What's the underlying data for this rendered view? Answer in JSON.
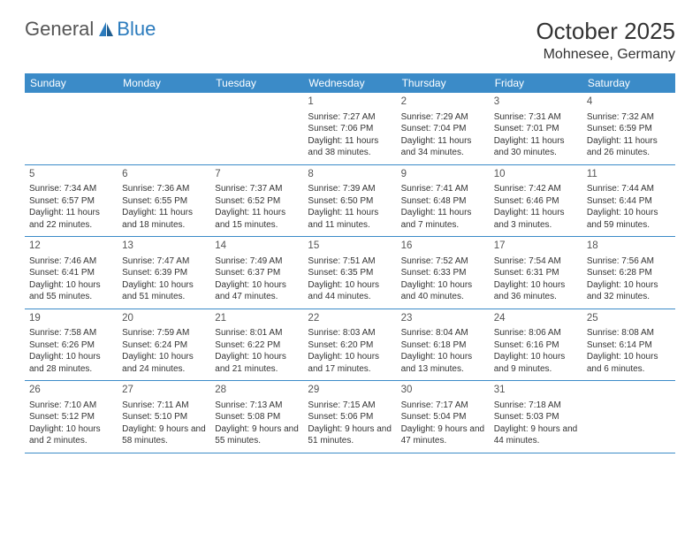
{
  "brand": {
    "part1": "General",
    "part2": "Blue"
  },
  "title": "October 2025",
  "location": "Mohnesee, Germany",
  "colors": {
    "header_bg": "#3b8bc8",
    "header_text": "#ffffff",
    "row_border": "#3b8bc8",
    "brand_gray": "#555555",
    "brand_blue": "#2b7bbd",
    "body_text": "#333333",
    "background": "#ffffff"
  },
  "day_labels": [
    "Sunday",
    "Monday",
    "Tuesday",
    "Wednesday",
    "Thursday",
    "Friday",
    "Saturday"
  ],
  "weeks": [
    [
      null,
      null,
      null,
      {
        "n": "1",
        "sr": "Sunrise: 7:27 AM",
        "ss": "Sunset: 7:06 PM",
        "dl": "Daylight: 11 hours and 38 minutes."
      },
      {
        "n": "2",
        "sr": "Sunrise: 7:29 AM",
        "ss": "Sunset: 7:04 PM",
        "dl": "Daylight: 11 hours and 34 minutes."
      },
      {
        "n": "3",
        "sr": "Sunrise: 7:31 AM",
        "ss": "Sunset: 7:01 PM",
        "dl": "Daylight: 11 hours and 30 minutes."
      },
      {
        "n": "4",
        "sr": "Sunrise: 7:32 AM",
        "ss": "Sunset: 6:59 PM",
        "dl": "Daylight: 11 hours and 26 minutes."
      }
    ],
    [
      {
        "n": "5",
        "sr": "Sunrise: 7:34 AM",
        "ss": "Sunset: 6:57 PM",
        "dl": "Daylight: 11 hours and 22 minutes."
      },
      {
        "n": "6",
        "sr": "Sunrise: 7:36 AM",
        "ss": "Sunset: 6:55 PM",
        "dl": "Daylight: 11 hours and 18 minutes."
      },
      {
        "n": "7",
        "sr": "Sunrise: 7:37 AM",
        "ss": "Sunset: 6:52 PM",
        "dl": "Daylight: 11 hours and 15 minutes."
      },
      {
        "n": "8",
        "sr": "Sunrise: 7:39 AM",
        "ss": "Sunset: 6:50 PM",
        "dl": "Daylight: 11 hours and 11 minutes."
      },
      {
        "n": "9",
        "sr": "Sunrise: 7:41 AM",
        "ss": "Sunset: 6:48 PM",
        "dl": "Daylight: 11 hours and 7 minutes."
      },
      {
        "n": "10",
        "sr": "Sunrise: 7:42 AM",
        "ss": "Sunset: 6:46 PM",
        "dl": "Daylight: 11 hours and 3 minutes."
      },
      {
        "n": "11",
        "sr": "Sunrise: 7:44 AM",
        "ss": "Sunset: 6:44 PM",
        "dl": "Daylight: 10 hours and 59 minutes."
      }
    ],
    [
      {
        "n": "12",
        "sr": "Sunrise: 7:46 AM",
        "ss": "Sunset: 6:41 PM",
        "dl": "Daylight: 10 hours and 55 minutes."
      },
      {
        "n": "13",
        "sr": "Sunrise: 7:47 AM",
        "ss": "Sunset: 6:39 PM",
        "dl": "Daylight: 10 hours and 51 minutes."
      },
      {
        "n": "14",
        "sr": "Sunrise: 7:49 AM",
        "ss": "Sunset: 6:37 PM",
        "dl": "Daylight: 10 hours and 47 minutes."
      },
      {
        "n": "15",
        "sr": "Sunrise: 7:51 AM",
        "ss": "Sunset: 6:35 PM",
        "dl": "Daylight: 10 hours and 44 minutes."
      },
      {
        "n": "16",
        "sr": "Sunrise: 7:52 AM",
        "ss": "Sunset: 6:33 PM",
        "dl": "Daylight: 10 hours and 40 minutes."
      },
      {
        "n": "17",
        "sr": "Sunrise: 7:54 AM",
        "ss": "Sunset: 6:31 PM",
        "dl": "Daylight: 10 hours and 36 minutes."
      },
      {
        "n": "18",
        "sr": "Sunrise: 7:56 AM",
        "ss": "Sunset: 6:28 PM",
        "dl": "Daylight: 10 hours and 32 minutes."
      }
    ],
    [
      {
        "n": "19",
        "sr": "Sunrise: 7:58 AM",
        "ss": "Sunset: 6:26 PM",
        "dl": "Daylight: 10 hours and 28 minutes."
      },
      {
        "n": "20",
        "sr": "Sunrise: 7:59 AM",
        "ss": "Sunset: 6:24 PM",
        "dl": "Daylight: 10 hours and 24 minutes."
      },
      {
        "n": "21",
        "sr": "Sunrise: 8:01 AM",
        "ss": "Sunset: 6:22 PM",
        "dl": "Daylight: 10 hours and 21 minutes."
      },
      {
        "n": "22",
        "sr": "Sunrise: 8:03 AM",
        "ss": "Sunset: 6:20 PM",
        "dl": "Daylight: 10 hours and 17 minutes."
      },
      {
        "n": "23",
        "sr": "Sunrise: 8:04 AM",
        "ss": "Sunset: 6:18 PM",
        "dl": "Daylight: 10 hours and 13 minutes."
      },
      {
        "n": "24",
        "sr": "Sunrise: 8:06 AM",
        "ss": "Sunset: 6:16 PM",
        "dl": "Daylight: 10 hours and 9 minutes."
      },
      {
        "n": "25",
        "sr": "Sunrise: 8:08 AM",
        "ss": "Sunset: 6:14 PM",
        "dl": "Daylight: 10 hours and 6 minutes."
      }
    ],
    [
      {
        "n": "26",
        "sr": "Sunrise: 7:10 AM",
        "ss": "Sunset: 5:12 PM",
        "dl": "Daylight: 10 hours and 2 minutes."
      },
      {
        "n": "27",
        "sr": "Sunrise: 7:11 AM",
        "ss": "Sunset: 5:10 PM",
        "dl": "Daylight: 9 hours and 58 minutes."
      },
      {
        "n": "28",
        "sr": "Sunrise: 7:13 AM",
        "ss": "Sunset: 5:08 PM",
        "dl": "Daylight: 9 hours and 55 minutes."
      },
      {
        "n": "29",
        "sr": "Sunrise: 7:15 AM",
        "ss": "Sunset: 5:06 PM",
        "dl": "Daylight: 9 hours and 51 minutes."
      },
      {
        "n": "30",
        "sr": "Sunrise: 7:17 AM",
        "ss": "Sunset: 5:04 PM",
        "dl": "Daylight: 9 hours and 47 minutes."
      },
      {
        "n": "31",
        "sr": "Sunrise: 7:18 AM",
        "ss": "Sunset: 5:03 PM",
        "dl": "Daylight: 9 hours and 44 minutes."
      },
      null
    ]
  ]
}
